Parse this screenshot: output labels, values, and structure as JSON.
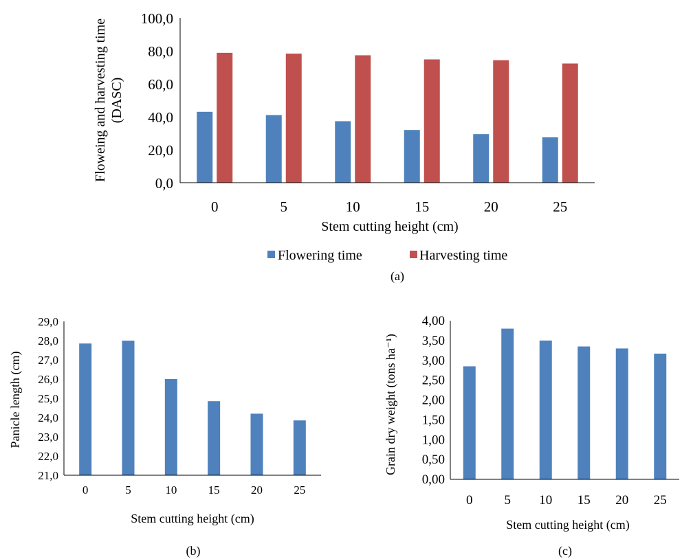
{
  "colors": {
    "flowering": "#4f81bd",
    "harvesting": "#c0504d",
    "axis": "#000000"
  },
  "chart_data": [
    {
      "type": "bar",
      "panel": "(a)",
      "categories": [
        "0",
        "5",
        "10",
        "15",
        "20",
        "25"
      ],
      "series": [
        {
          "name": "Flowering time",
          "values": [
            43.0,
            41.0,
            37.3,
            32.0,
            29.5,
            27.5
          ]
        },
        {
          "name": "Harvesting time",
          "values": [
            78.8,
            78.3,
            77.3,
            74.8,
            74.3,
            72.3
          ]
        }
      ],
      "xlabel": "Stem cutting height (cm)",
      "ylabel": "Floweing and harvesting time (DASC)",
      "ylim": [
        0,
        100
      ],
      "yticks": [
        "0,0",
        "20,0",
        "40,0",
        "60,0",
        "80,0",
        "100,0"
      ],
      "legend": "bottom"
    },
    {
      "type": "bar",
      "panel": "(b)",
      "categories": [
        "0",
        "5",
        "10",
        "15",
        "20",
        "25"
      ],
      "series": [
        {
          "values": [
            27.85,
            28.0,
            26.0,
            24.85,
            24.2,
            23.85
          ]
        }
      ],
      "xlabel": "Stem cutting height (cm)",
      "ylabel": "Panicle length (cm)",
      "ylim": [
        21,
        29
      ],
      "yticks": [
        "21,0",
        "22,0",
        "23,0",
        "24,0",
        "25,0",
        "26,0",
        "27,0",
        "28,0",
        "29,0"
      ]
    },
    {
      "type": "bar",
      "panel": "(c)",
      "categories": [
        "0",
        "5",
        "10",
        "15",
        "20",
        "25"
      ],
      "series": [
        {
          "values": [
            2.85,
            3.8,
            3.5,
            3.35,
            3.3,
            3.17
          ]
        }
      ],
      "xlabel": "Stem cutting height (cm)",
      "ylabel": "Grain dry weight (tons ha⁻¹)",
      "ylim": [
        0,
        4
      ],
      "yticks": [
        "0,00",
        "0,50",
        "1,00",
        "1,50",
        "2,00",
        "2,50",
        "3,00",
        "3,50",
        "4,00"
      ]
    }
  ]
}
